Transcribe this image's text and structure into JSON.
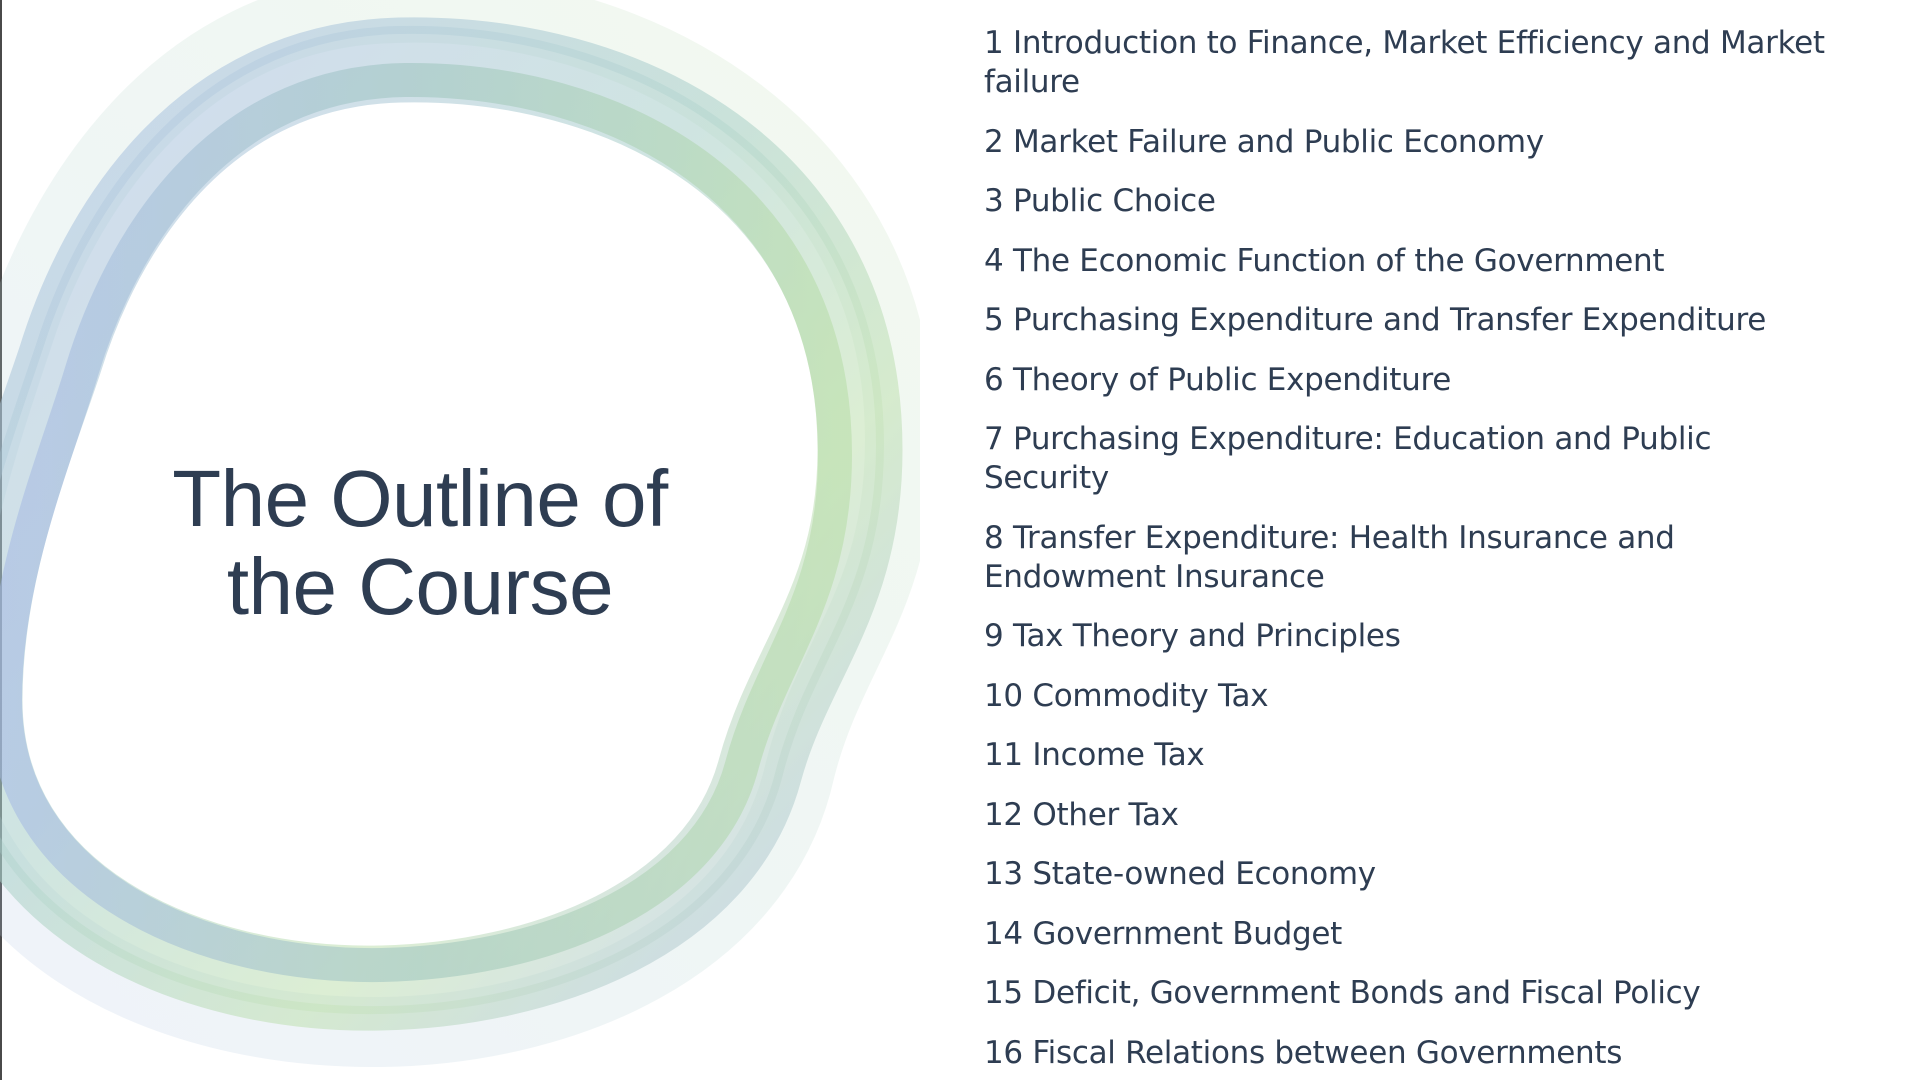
{
  "slide": {
    "title": "The Outline of the Course",
    "items": [
      "1 Introduction to Finance, Market Efficiency and Market failure",
      "2 Market Failure and Public Economy",
      "3 Public Choice",
      "4 The Economic Function of the Government",
      "5 Purchasing Expenditure and Transfer Expenditure",
      "6 Theory of Public Expenditure",
      "7 Purchasing Expenditure: Education and Public Security",
      "8 Transfer Expenditure: Health Insurance and Endowment Insurance",
      "9 Tax Theory and Principles",
      "10 Commodity Tax",
      "11 Income Tax",
      "12 Other Tax",
      "13 State-owned Economy",
      "14 Government Budget",
      "15 Deficit, Government Bonds and Fiscal Policy",
      "16 Fiscal Relations between Governments"
    ]
  },
  "colors": {
    "text": "#2e3d52",
    "ring_blue": "#a9bce6",
    "ring_green": "#bfe0b0",
    "ring_teal": "#a8cfc8"
  }
}
